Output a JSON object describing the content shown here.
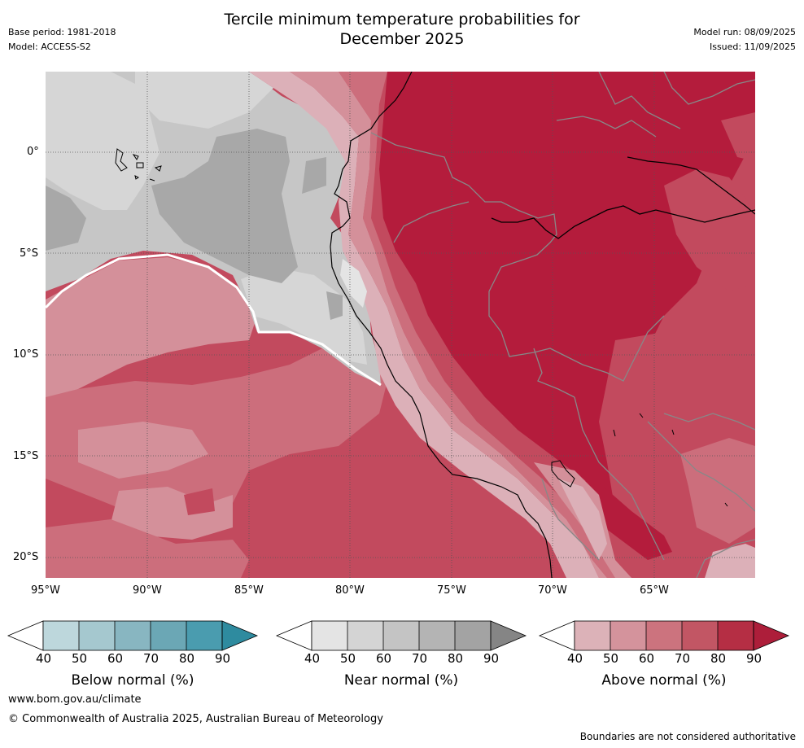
{
  "header": {
    "title_line1": "Tercile minimum temperature probabilities for",
    "title_line2": "December 2025",
    "base_period": "Base period: 1981-2018",
    "model": "Model: ACCESS-S2",
    "model_run": "Model run: 08/09/2025",
    "issued": "Issued: 11/09/2025"
  },
  "map": {
    "lat_labels": [
      "0°",
      "5°S",
      "10°S",
      "15°S",
      "20°S"
    ],
    "lon_labels": [
      "95°W",
      "90°W",
      "85°W",
      "80°W",
      "75°W",
      "70°W",
      "65°W"
    ],
    "colors": {
      "ocean_near_60": "#c6c6c6",
      "ocean_near_50": "#d6d6d6",
      "ocean_near_70": "#a8a8a8",
      "above_50": "#dcb0b8",
      "above_60": "#d4909a",
      "above_70": "#cc6e7c",
      "above_80": "#c24a5e",
      "above_90": "#b41c3c"
    }
  },
  "colorbars": [
    {
      "id": "below",
      "title": "Below normal (%)",
      "ticks": [
        "40",
        "50",
        "60",
        "70",
        "80",
        "90"
      ],
      "colors": [
        "#bdd7dc",
        "#a5c8cf",
        "#88b6c1",
        "#6ba7b5",
        "#4a9caf",
        "#2e8b9f"
      ]
    },
    {
      "id": "near",
      "title": "Near normal (%)",
      "ticks": [
        "40",
        "50",
        "60",
        "70",
        "80",
        "90"
      ],
      "colors": [
        "#e4e4e4",
        "#d4d4d4",
        "#c4c4c4",
        "#b4b4b4",
        "#a3a3a3",
        "#858585"
      ]
    },
    {
      "id": "above",
      "title": "Above normal (%)",
      "ticks": [
        "40",
        "50",
        "60",
        "70",
        "80",
        "90"
      ],
      "colors": [
        "#dcb2b8",
        "#d4939c",
        "#cc737e",
        "#c25664",
        "#b52e44",
        "#ad1e3a"
      ]
    }
  ],
  "footer": {
    "url": "www.bom.gov.au/climate",
    "copyright": "© Commonwealth of Australia 2025, Australian Bureau of Meteorology",
    "disclaimer": "Boundaries are not considered authoritative"
  }
}
